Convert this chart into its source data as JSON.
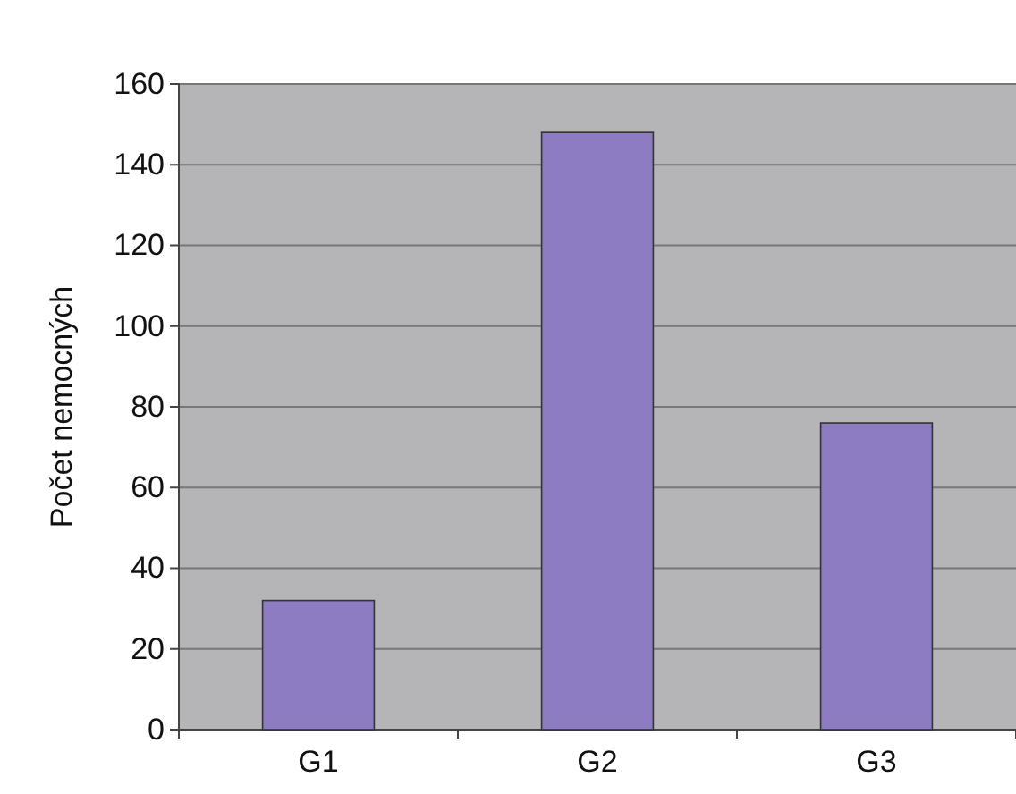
{
  "chart_data": {
    "type": "bar",
    "ylabel": "Počet nemocných",
    "categories": [
      "G1",
      "G2",
      "G3"
    ],
    "values": [
      32,
      148,
      76
    ],
    "color": "#8e7cc3",
    "ylim": [
      0,
      160
    ],
    "yticks": [
      0,
      20,
      40,
      60,
      80,
      100,
      120,
      140,
      160
    ],
    "grid": "y"
  }
}
